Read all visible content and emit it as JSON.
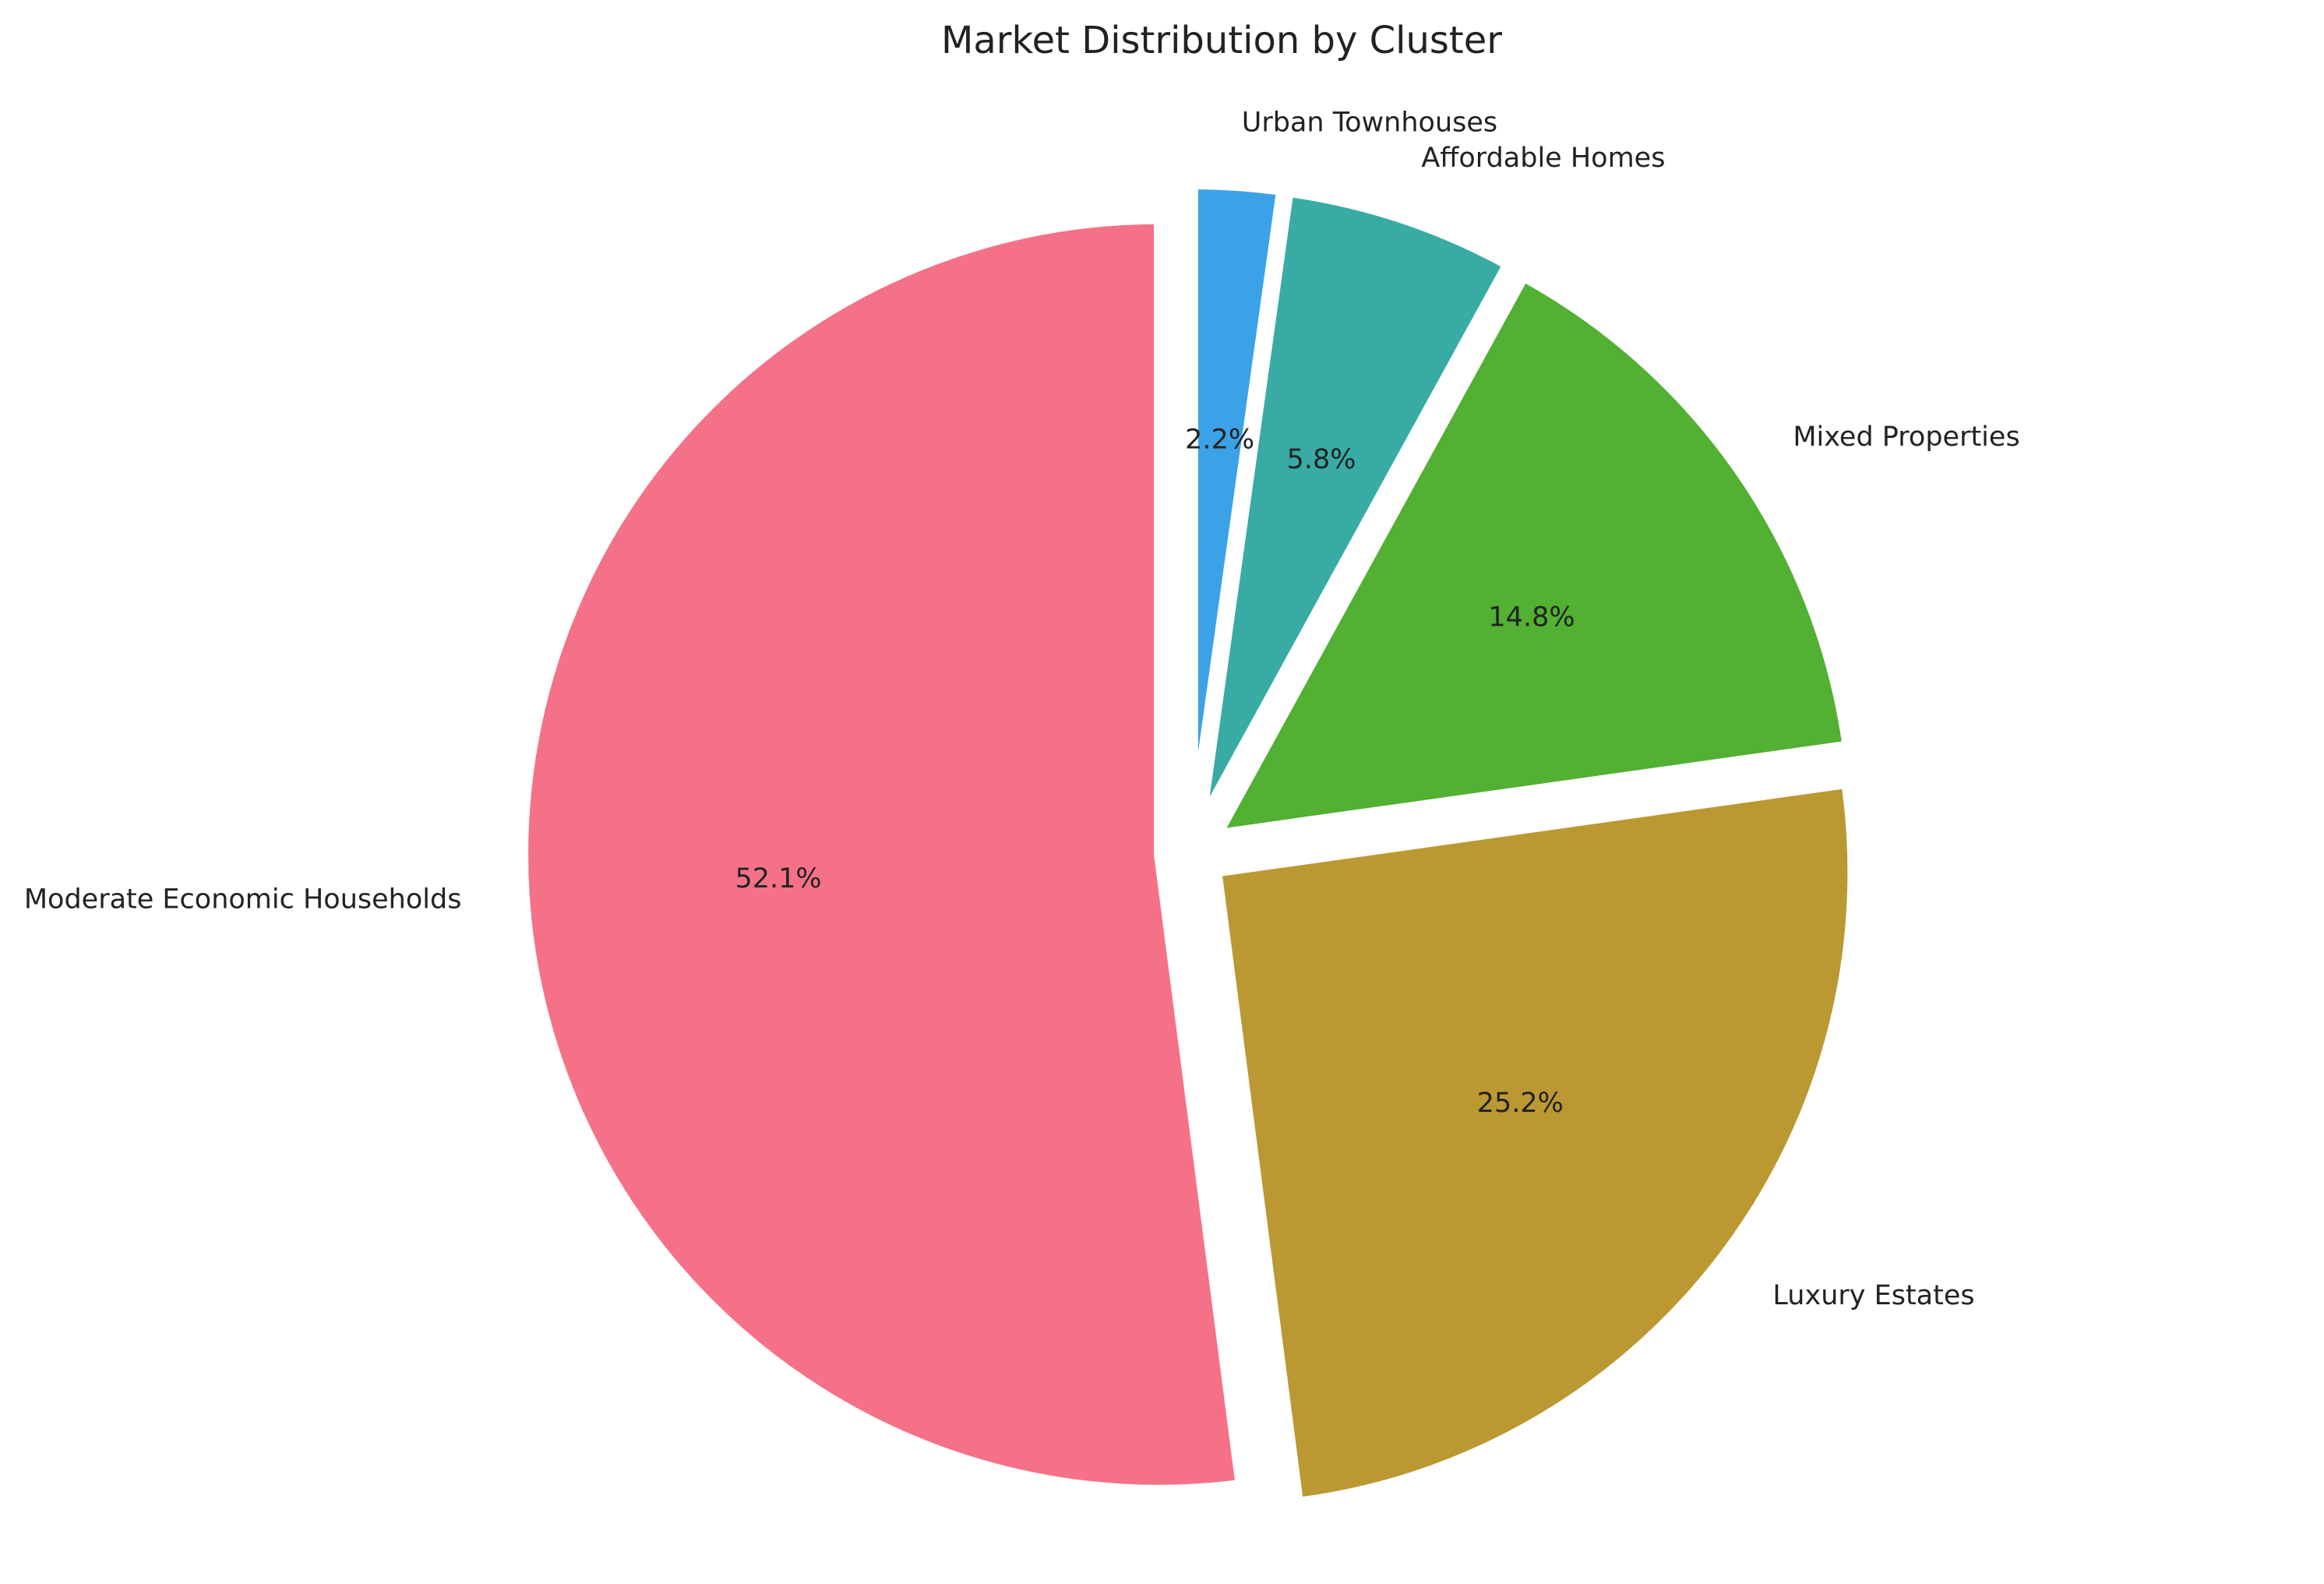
{
  "chart_data": {
    "type": "pie",
    "title": "Market Distribution by Cluster",
    "start_angle_deg": 90,
    "direction": "clockwise",
    "legend": "none",
    "slices": [
      {
        "label": "Urban Townhouses",
        "value": 2.2,
        "pct_label": "2.2%",
        "color": "#3ca2e8"
      },
      {
        "label": "Affordable Homes",
        "value": 5.8,
        "pct_label": "5.8%",
        "color": "#38aba5"
      },
      {
        "label": "Mixed Properties",
        "value": 14.8,
        "pct_label": "14.8%",
        "color": "#52b032"
      },
      {
        "label": "Luxury Estates",
        "value": 25.2,
        "pct_label": "25.2%",
        "color": "#bb9832"
      },
      {
        "label": "Moderate Economic Households",
        "value": 52.1,
        "pct_label": "52.1%",
        "color": "#f57188"
      }
    ]
  }
}
